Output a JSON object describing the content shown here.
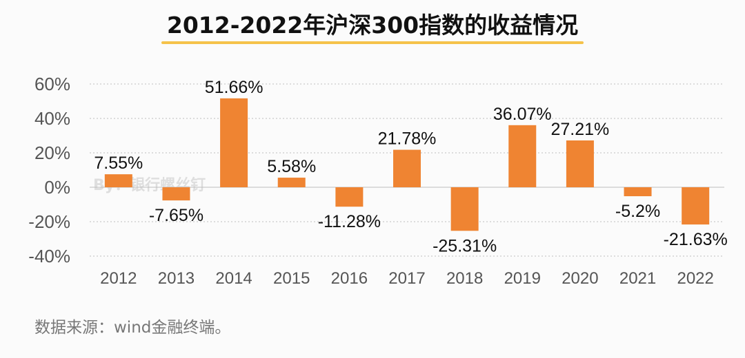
{
  "title": "2012-2022年沪深300指数的收益情况",
  "source": "数据来源：wind金融终端。",
  "watermark": "By：银行螺丝钉",
  "colors": {
    "bar": "#ef8432",
    "grid": "#bdbdbd",
    "axis_text": "#555555",
    "label_text": "#111111",
    "title_underline": "#f5c24a"
  },
  "chart_data": {
    "type": "bar",
    "title": "2012-2022年沪深300指数的收益情况",
    "xlabel": "",
    "ylabel": "",
    "unit": "%",
    "ylim": [
      -40,
      60
    ],
    "yticks": [
      "60%",
      "40%",
      "20%",
      "0%",
      "-20%",
      "-40%"
    ],
    "ytick_values": [
      60,
      40,
      20,
      0,
      -20,
      -40
    ],
    "grid": true,
    "categories": [
      "2012",
      "2013",
      "2014",
      "2015",
      "2016",
      "2017",
      "2018",
      "2019",
      "2020",
      "2021",
      "2022"
    ],
    "values": [
      7.55,
      -7.65,
      51.66,
      5.58,
      -11.28,
      21.78,
      -25.31,
      36.07,
      27.21,
      -5.2,
      -21.63
    ],
    "data_labels": [
      "7.55%",
      "-7.65%",
      "51.66%",
      "5.58%",
      "-11.28%",
      "21.78%",
      "-25.31%",
      "36.07%",
      "27.21%",
      "-5.2%",
      "-21.63%"
    ]
  }
}
